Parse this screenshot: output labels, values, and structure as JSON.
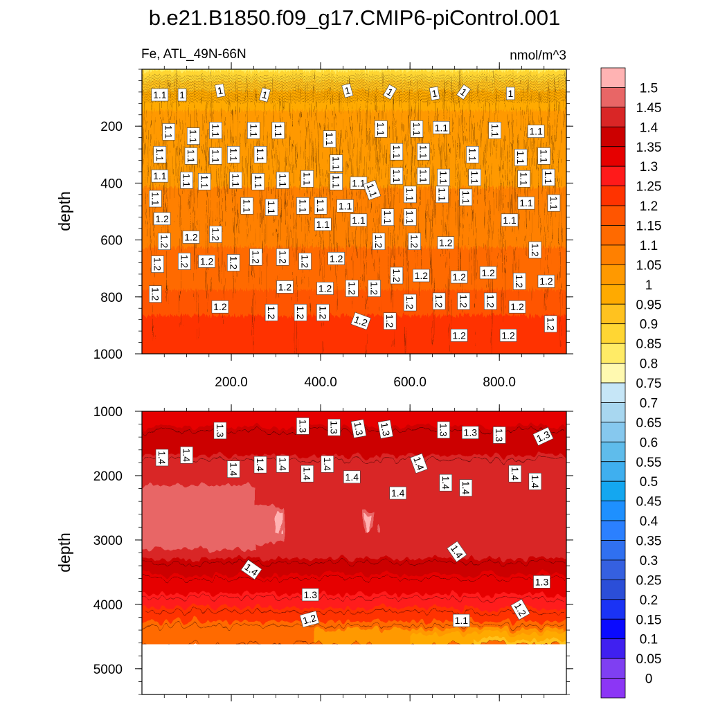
{
  "chart_data": {
    "type": "heatmap",
    "title": "b.e21.B1850.f09_g17.CMIP6-piControl.001",
    "left_string": "Fe, ATL_49N-66N",
    "right_string": "nmol/m^3",
    "ylabel": "depth",
    "xlim": [
      0,
      950
    ],
    "colorbar": {
      "levels": [
        "1.5",
        "1.45",
        "1.4",
        "1.35",
        "1.3",
        "1.25",
        "1.2",
        "1.15",
        "1.1",
        "1.05",
        "1",
        "0.95",
        "0.9",
        "0.85",
        "0.8",
        "0.75",
        "0.7",
        "0.65",
        "0.6",
        "0.55",
        "0.5",
        "0.45",
        "0.4",
        "0.35",
        "0.3",
        "0.25",
        "0.2",
        "0.15",
        "0.1",
        "0.05",
        "0"
      ],
      "colors": [
        "#FFB3B3",
        "#E86666",
        "#D92626",
        "#CC0000",
        "#E60000",
        "#FF1A1A",
        "#FF3300",
        "#FF5500",
        "#FF6A00",
        "#FF8000",
        "#FF9900",
        "#FFAA00",
        "#FFC21F",
        "#FFD633",
        "#FFEB66",
        "#FFF9B0",
        "#C6E6F7",
        "#A8D7F0",
        "#86C8EE",
        "#5FBCEB",
        "#3FAFEF",
        "#14A7F0",
        "#1E90FF",
        "#2B80FF",
        "#3070F0",
        "#3560E0",
        "#2B4ED8",
        "#1A33F5",
        "#0A0AFF",
        "#4020F0",
        "#7F3FF2",
        "#8C36F5"
      ]
    },
    "panels": [
      {
        "name": "upper",
        "ylim": [
          0,
          1000
        ],
        "yticks": [
          "200",
          "400",
          "600",
          "800",
          "1000"
        ],
        "xticks": [
          "200.0",
          "400.0",
          "600.0",
          "800.0"
        ],
        "bands": [
          {
            "top": 0,
            "bottom": 20,
            "color": "#FFEB66"
          },
          {
            "top": 20,
            "bottom": 55,
            "color": "#FFD633"
          },
          {
            "top": 55,
            "bottom": 90,
            "color": "#FFC21F"
          },
          {
            "top": 90,
            "bottom": 160,
            "color": "#FFAA00"
          },
          {
            "top": 160,
            "bottom": 430,
            "color": "#FF9900"
          },
          {
            "top": 430,
            "bottom": 640,
            "color": "#FF8000"
          },
          {
            "top": 640,
            "bottom": 790,
            "color": "#FF6A00"
          },
          {
            "top": 790,
            "bottom": 880,
            "color": "#FF5500"
          },
          {
            "top": 880,
            "bottom": 1000,
            "color": "#FF3300"
          }
        ],
        "contour_labels": [
          {
            "text": "1.1",
            "x": 40,
            "y": 90,
            "rot": 0
          },
          {
            "text": "1",
            "x": 90,
            "y": 90,
            "rot": 0
          },
          {
            "text": "1",
            "x": 175,
            "y": 75,
            "rot": -10
          },
          {
            "text": "1",
            "x": 275,
            "y": 90,
            "rot": 15
          },
          {
            "text": "1",
            "x": 460,
            "y": 75,
            "rot": -15
          },
          {
            "text": "1",
            "x": 555,
            "y": 80,
            "rot": 30
          },
          {
            "text": "1",
            "x": 655,
            "y": 85,
            "rot": -10
          },
          {
            "text": "1",
            "x": 720,
            "y": 80,
            "rot": 35
          },
          {
            "text": "1",
            "x": 825,
            "y": 85,
            "rot": 0
          },
          {
            "text": "1.1",
            "x": 60,
            "y": 220,
            "rot": 90
          },
          {
            "text": "1.1",
            "x": 115,
            "y": 235,
            "rot": 90
          },
          {
            "text": "1.1",
            "x": 165,
            "y": 215,
            "rot": 90
          },
          {
            "text": "1.1",
            "x": 250,
            "y": 215,
            "rot": 90
          },
          {
            "text": "1.1",
            "x": 305,
            "y": 215,
            "rot": 90
          },
          {
            "text": "1.1",
            "x": 420,
            "y": 245,
            "rot": 90
          },
          {
            "text": "1.1",
            "x": 535,
            "y": 210,
            "rot": 90
          },
          {
            "text": "1.1",
            "x": 615,
            "y": 210,
            "rot": 90
          },
          {
            "text": "1.1",
            "x": 670,
            "y": 205,
            "rot": 0
          },
          {
            "text": "1.1",
            "x": 790,
            "y": 215,
            "rot": 90
          },
          {
            "text": "1.1",
            "x": 882,
            "y": 218,
            "rot": 0
          },
          {
            "text": "1.1",
            "x": 40,
            "y": 300,
            "rot": 90
          },
          {
            "text": "1.1",
            "x": 110,
            "y": 305,
            "rot": 90
          },
          {
            "text": "1.1",
            "x": 165,
            "y": 305,
            "rot": 90
          },
          {
            "text": "1.1",
            "x": 205,
            "y": 300,
            "rot": 90
          },
          {
            "text": "1.1",
            "x": 265,
            "y": 300,
            "rot": 90
          },
          {
            "text": "1.1",
            "x": 435,
            "y": 330,
            "rot": 90
          },
          {
            "text": "1.1",
            "x": 570,
            "y": 290,
            "rot": 90
          },
          {
            "text": "1.1",
            "x": 630,
            "y": 290,
            "rot": 90
          },
          {
            "text": "1.1",
            "x": 740,
            "y": 300,
            "rot": 90
          },
          {
            "text": "1.1",
            "x": 848,
            "y": 310,
            "rot": 90
          },
          {
            "text": "1.1",
            "x": 900,
            "y": 305,
            "rot": 90
          },
          {
            "text": "1.1",
            "x": 40,
            "y": 375,
            "rot": 0
          },
          {
            "text": "1.1",
            "x": 100,
            "y": 390,
            "rot": 90
          },
          {
            "text": "1.1",
            "x": 140,
            "y": 395,
            "rot": 90
          },
          {
            "text": "1.1",
            "x": 210,
            "y": 390,
            "rot": 90
          },
          {
            "text": "1.1",
            "x": 260,
            "y": 395,
            "rot": 90
          },
          {
            "text": "1.1",
            "x": 315,
            "y": 390,
            "rot": 90
          },
          {
            "text": "1.1",
            "x": 370,
            "y": 385,
            "rot": 90
          },
          {
            "text": "1.1",
            "x": 435,
            "y": 395,
            "rot": 90
          },
          {
            "text": "1.1",
            "x": 485,
            "y": 400,
            "rot": 0
          },
          {
            "text": "1.1",
            "x": 570,
            "y": 375,
            "rot": 90
          },
          {
            "text": "1.1",
            "x": 630,
            "y": 375,
            "rot": 90
          },
          {
            "text": "1.1",
            "x": 675,
            "y": 380,
            "rot": 90
          },
          {
            "text": "1.1",
            "x": 745,
            "y": 380,
            "rot": 90
          },
          {
            "text": "1.1",
            "x": 855,
            "y": 385,
            "rot": 90
          },
          {
            "text": "1.1",
            "x": 910,
            "y": 380,
            "rot": 90
          },
          {
            "text": "1.1",
            "x": 30,
            "y": 455,
            "rot": 90
          },
          {
            "text": "1.1",
            "x": 235,
            "y": 480,
            "rot": 90
          },
          {
            "text": "1.1",
            "x": 290,
            "y": 485,
            "rot": 90
          },
          {
            "text": "1.1",
            "x": 360,
            "y": 480,
            "rot": 90
          },
          {
            "text": "1.1",
            "x": 400,
            "y": 480,
            "rot": 90
          },
          {
            "text": "1.1",
            "x": 455,
            "y": 480,
            "rot": 0
          },
          {
            "text": "1.1",
            "x": 515,
            "y": 425,
            "rot": 70
          },
          {
            "text": "1.1",
            "x": 600,
            "y": 440,
            "rot": 90
          },
          {
            "text": "1.1",
            "x": 672,
            "y": 440,
            "rot": 90
          },
          {
            "text": "1.1",
            "x": 725,
            "y": 450,
            "rot": 90
          },
          {
            "text": "1.1",
            "x": 860,
            "y": 470,
            "rot": 0
          },
          {
            "text": "1.1",
            "x": 922,
            "y": 470,
            "rot": 90
          },
          {
            "text": "1.2",
            "x": 45,
            "y": 525,
            "rot": 0
          },
          {
            "text": "1.1",
            "x": 405,
            "y": 545,
            "rot": 0
          },
          {
            "text": "1.1",
            "x": 485,
            "y": 530,
            "rot": 0
          },
          {
            "text": "1.1",
            "x": 550,
            "y": 520,
            "rot": 90
          },
          {
            "text": "1.1",
            "x": 600,
            "y": 520,
            "rot": 90
          },
          {
            "text": "1.1",
            "x": 823,
            "y": 530,
            "rot": 0
          },
          {
            "text": "1.2",
            "x": 50,
            "y": 605,
            "rot": 90
          },
          {
            "text": "1.2",
            "x": 110,
            "y": 590,
            "rot": 0
          },
          {
            "text": "1.2",
            "x": 165,
            "y": 580,
            "rot": 90
          },
          {
            "text": "1.2",
            "x": 530,
            "y": 605,
            "rot": 90
          },
          {
            "text": "1.2",
            "x": 610,
            "y": 605,
            "rot": 90
          },
          {
            "text": "1.2",
            "x": 680,
            "y": 610,
            "rot": 0
          },
          {
            "text": "1.2",
            "x": 880,
            "y": 635,
            "rot": 90
          },
          {
            "text": "1.2",
            "x": 35,
            "y": 685,
            "rot": 90
          },
          {
            "text": "1.2",
            "x": 95,
            "y": 675,
            "rot": 90
          },
          {
            "text": "1.2",
            "x": 145,
            "y": 675,
            "rot": 0
          },
          {
            "text": "1.2",
            "x": 205,
            "y": 680,
            "rot": 90
          },
          {
            "text": "1.2",
            "x": 255,
            "y": 660,
            "rot": 90
          },
          {
            "text": "1.2",
            "x": 315,
            "y": 660,
            "rot": 90
          },
          {
            "text": "1.2",
            "x": 365,
            "y": 675,
            "rot": 90
          },
          {
            "text": "1.2",
            "x": 435,
            "y": 665,
            "rot": 0
          },
          {
            "text": "1.2",
            "x": 570,
            "y": 725,
            "rot": 90
          },
          {
            "text": "1.2",
            "x": 625,
            "y": 725,
            "rot": 0
          },
          {
            "text": "1.2",
            "x": 710,
            "y": 730,
            "rot": 0
          },
          {
            "text": "1.2",
            "x": 775,
            "y": 715,
            "rot": 0
          },
          {
            "text": "1.2",
            "x": 845,
            "y": 745,
            "rot": 90
          },
          {
            "text": "1.2",
            "x": 905,
            "y": 745,
            "rot": 0
          },
          {
            "text": "1.2",
            "x": 30,
            "y": 790,
            "rot": 90
          },
          {
            "text": "1.2",
            "x": 320,
            "y": 765,
            "rot": 0
          },
          {
            "text": "1.2",
            "x": 410,
            "y": 770,
            "rot": 0
          },
          {
            "text": "1.2",
            "x": 470,
            "y": 770,
            "rot": 90
          },
          {
            "text": "1.2",
            "x": 520,
            "y": 770,
            "rot": 90
          },
          {
            "text": "1.2",
            "x": 600,
            "y": 820,
            "rot": 90
          },
          {
            "text": "1.2",
            "x": 665,
            "y": 815,
            "rot": 90
          },
          {
            "text": "1.2",
            "x": 720,
            "y": 815,
            "rot": 90
          },
          {
            "text": "1.2",
            "x": 780,
            "y": 815,
            "rot": 90
          },
          {
            "text": "1.2",
            "x": 840,
            "y": 835,
            "rot": 0
          },
          {
            "text": "1.2",
            "x": 175,
            "y": 835,
            "rot": 0
          },
          {
            "text": "1.2",
            "x": 290,
            "y": 855,
            "rot": 90
          },
          {
            "text": "1.2",
            "x": 355,
            "y": 855,
            "rot": 90
          },
          {
            "text": "1.2",
            "x": 405,
            "y": 855,
            "rot": 90
          },
          {
            "text": "1.2",
            "x": 490,
            "y": 885,
            "rot": 20
          },
          {
            "text": "1.2",
            "x": 555,
            "y": 885,
            "rot": 90
          },
          {
            "text": "1.2",
            "x": 710,
            "y": 935,
            "rot": 0
          },
          {
            "text": "1.2",
            "x": 820,
            "y": 935,
            "rot": 0
          },
          {
            "text": "1.2",
            "x": 915,
            "y": 895,
            "rot": 90
          }
        ]
      },
      {
        "name": "lower",
        "ylim": [
          1000,
          5400
        ],
        "yticks": [
          "1000",
          "2000",
          "3000",
          "4000",
          "5000"
        ],
        "seafloor": 4620,
        "bands": [
          {
            "top": 1000,
            "bottom": 1300,
            "color": "#E60000"
          },
          {
            "top": 1300,
            "bottom": 1750,
            "color": "#CC0000"
          },
          {
            "top": 1750,
            "bottom": 3350,
            "color": "#D92626"
          },
          {
            "top": 3350,
            "bottom": 3600,
            "color": "#CC0000"
          },
          {
            "top": 3600,
            "bottom": 3900,
            "color": "#E60000"
          },
          {
            "top": 3900,
            "bottom": 4120,
            "color": "#FF1A1A"
          },
          {
            "top": 4120,
            "bottom": 4330,
            "color": "#FF3300"
          },
          {
            "top": 4330,
            "bottom": 4620,
            "color": "#FF6A00"
          }
        ],
        "contour_labels": [
          {
            "text": "1.3",
            "x": 175,
            "y": 1300,
            "rot": 90
          },
          {
            "text": "1.3",
            "x": 360,
            "y": 1230,
            "rot": 90
          },
          {
            "text": "1.3",
            "x": 430,
            "y": 1250,
            "rot": 90
          },
          {
            "text": "1.3",
            "x": 485,
            "y": 1270,
            "rot": 80
          },
          {
            "text": "1.3",
            "x": 545,
            "y": 1280,
            "rot": 80
          },
          {
            "text": "1.3",
            "x": 675,
            "y": 1290,
            "rot": 90
          },
          {
            "text": "1.3",
            "x": 735,
            "y": 1330,
            "rot": 0
          },
          {
            "text": "1.3",
            "x": 800,
            "y": 1370,
            "rot": 90
          },
          {
            "text": "1.3",
            "x": 898,
            "y": 1390,
            "rot": -25
          },
          {
            "text": "1.4",
            "x": 45,
            "y": 1720,
            "rot": 90
          },
          {
            "text": "1.4",
            "x": 100,
            "y": 1680,
            "rot": 90
          },
          {
            "text": "1.4",
            "x": 205,
            "y": 1900,
            "rot": 90
          },
          {
            "text": "1.4",
            "x": 265,
            "y": 1830,
            "rot": 90
          },
          {
            "text": "1.4",
            "x": 315,
            "y": 1820,
            "rot": 90
          },
          {
            "text": "1.4",
            "x": 370,
            "y": 1970,
            "rot": 90
          },
          {
            "text": "1.4",
            "x": 415,
            "y": 1820,
            "rot": 90
          },
          {
            "text": "1.4",
            "x": 470,
            "y": 2020,
            "rot": 0
          },
          {
            "text": "1.4",
            "x": 620,
            "y": 1810,
            "rot": 70
          },
          {
            "text": "1.4",
            "x": 680,
            "y": 2110,
            "rot": 90
          },
          {
            "text": "1.4",
            "x": 725,
            "y": 2190,
            "rot": 90
          },
          {
            "text": "1.4",
            "x": 835,
            "y": 1970,
            "rot": 90
          },
          {
            "text": "1.4",
            "x": 880,
            "y": 2090,
            "rot": 90
          },
          {
            "text": "1.4",
            "x": 573,
            "y": 2270,
            "rot": 0
          },
          {
            "text": "1.4",
            "x": 245,
            "y": 3460,
            "rot": 35
          },
          {
            "text": "1.4",
            "x": 705,
            "y": 3180,
            "rot": 55
          },
          {
            "text": "1.3",
            "x": 377,
            "y": 3850,
            "rot": 0
          },
          {
            "text": "1.3",
            "x": 895,
            "y": 3650,
            "rot": 0
          },
          {
            "text": "1.2",
            "x": 375,
            "y": 4230,
            "rot": -15
          },
          {
            "text": "1.1",
            "x": 715,
            "y": 4250,
            "rot": 0
          },
          {
            "text": "1.2",
            "x": 847,
            "y": 4080,
            "rot": 60
          }
        ]
      }
    ]
  }
}
